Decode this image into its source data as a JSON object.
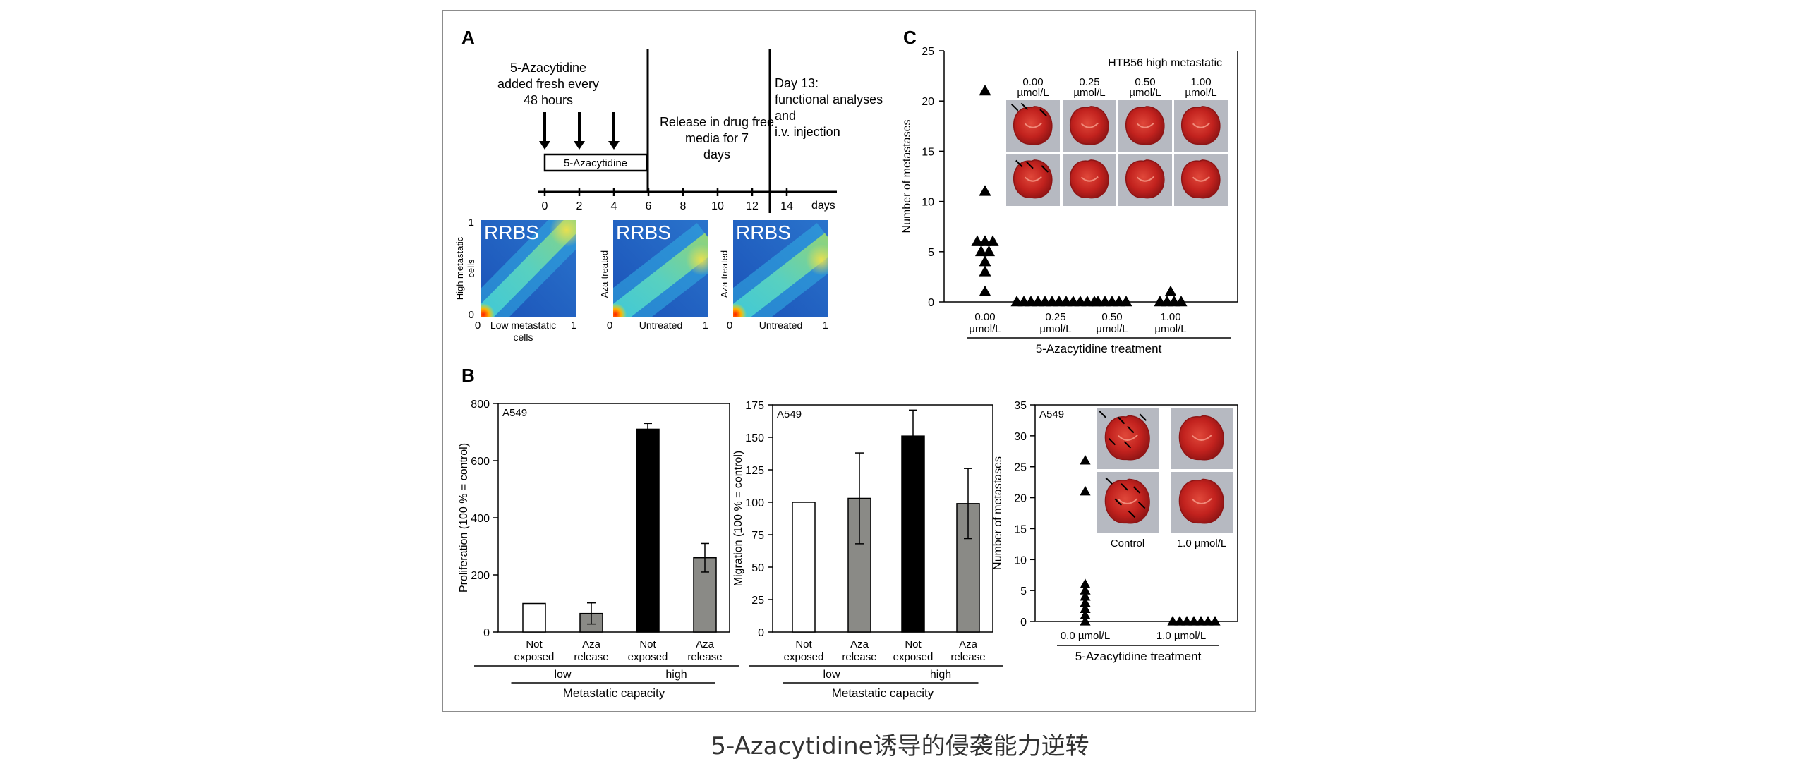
{
  "caption": "5-Azacytidine诱导的侵袭能力逆转",
  "panel_A": {
    "label": "A",
    "drug_note": "5-Azacytidine added fresh every 48 hours",
    "drug_box": "5-Azacytidine",
    "release_note": "Release in drug free media for 7 days",
    "day13_note": "Day 13: functional analyses and i.v. injection",
    "timeline_ticks": [
      "0",
      "2",
      "4",
      "6",
      "8",
      "10",
      "12",
      "14"
    ],
    "timeline_unit": "days",
    "heatmaps": [
      {
        "tag": "RRBS",
        "ylabel": "High metastatic cells",
        "xlabel": "Low metastatic cells",
        "ymax": "1",
        "ymin": "0",
        "xmin": "0",
        "xmax": "1"
      },
      {
        "tag": "RRBS",
        "ylabel": "Aza-treated",
        "xlabel": "Untreated",
        "xmin": "0",
        "xmax": "1"
      },
      {
        "tag": "RRBS",
        "ylabel": "Aza-treated",
        "xlabel": "Untreated",
        "xmin": "0",
        "xmax": "1"
      }
    ]
  },
  "panel_B_label": "B",
  "panel_C_label": "C",
  "photo_colors": {
    "lung": "#c2221e",
    "lung_dark": "#8e1414",
    "background": "#b6b9c1"
  },
  "chart_data": [
    {
      "id": "C-HTB56",
      "type": "scatter",
      "ylabel": "Number of metastases",
      "xlabel": "5-Azacytidine treatment",
      "inset_title": "HTB56 high metastatic",
      "inset_labels": [
        "0.00 µmol/L",
        "0.25 µmol/L",
        "0.50 µmol/L",
        "1.00 µmol/L"
      ],
      "ylim": [
        0,
        25
      ],
      "yticks": [
        0,
        5,
        10,
        15,
        20,
        25
      ],
      "categories": [
        "0.00 µmol/L",
        "0.25 µmol/L",
        "0.50 µmol/L",
        "1.00 µmol/L"
      ],
      "points": [
        [
          0,
          21
        ],
        [
          0,
          11
        ],
        [
          0,
          6
        ],
        [
          0,
          6
        ],
        [
          0,
          6
        ],
        [
          0,
          5
        ],
        [
          0,
          5
        ],
        [
          0,
          4
        ],
        [
          0,
          3
        ],
        [
          0,
          1
        ],
        [
          1,
          0
        ],
        [
          1,
          0
        ],
        [
          1,
          0
        ],
        [
          1,
          0
        ],
        [
          1,
          0
        ],
        [
          1,
          0
        ],
        [
          1,
          0
        ],
        [
          1,
          0
        ],
        [
          1,
          0
        ],
        [
          1,
          0
        ],
        [
          1,
          0
        ],
        [
          1,
          0
        ],
        [
          2,
          0
        ],
        [
          2,
          0
        ],
        [
          2,
          0
        ],
        [
          2,
          0
        ],
        [
          2,
          0
        ],
        [
          3,
          1
        ],
        [
          3,
          0
        ],
        [
          3,
          0
        ],
        [
          3,
          0
        ],
        [
          3,
          0
        ]
      ],
      "marker": "triangle"
    },
    {
      "id": "B-proliferation",
      "type": "bar",
      "cell_line": "A549",
      "ylabel": "Proliferation (100 % = control)",
      "ylim": [
        0,
        800
      ],
      "yticks": [
        0,
        200,
        400,
        600,
        800
      ],
      "categories": [
        "Not exposed",
        "Aza release",
        "Not exposed",
        "Aza release"
      ],
      "values": [
        100,
        65,
        710,
        260
      ],
      "errors": [
        0,
        37,
        20,
        50
      ],
      "colors": [
        "#ffffff",
        "#8a8a86",
        "#000000",
        "#8a8a86"
      ],
      "groups": [
        {
          "label": "low",
          "span": [
            0,
            1
          ]
        },
        {
          "label": "high",
          "span": [
            2,
            3
          ]
        }
      ],
      "xlabel": "Metastatic capacity"
    },
    {
      "id": "B-migration",
      "type": "bar",
      "cell_line": "A549",
      "ylabel": "Migration (100 % = control)",
      "ylim": [
        0,
        175
      ],
      "yticks": [
        0,
        25,
        50,
        75,
        100,
        125,
        150,
        175
      ],
      "categories": [
        "Not exposed",
        "Aza release",
        "Not exposed",
        "Aza release"
      ],
      "values": [
        100,
        103,
        151,
        99
      ],
      "errors": [
        0,
        35,
        20,
        27
      ],
      "colors": [
        "#ffffff",
        "#8a8a86",
        "#000000",
        "#8a8a86"
      ],
      "groups": [
        {
          "label": "low",
          "span": [
            0,
            1
          ]
        },
        {
          "label": "high",
          "span": [
            2,
            3
          ]
        }
      ],
      "xlabel": "Metastatic capacity"
    },
    {
      "id": "B-metastases",
      "type": "scatter",
      "cell_line": "A549",
      "ylabel": "Number of metastases",
      "xlabel": "5-Azacytidine treatment",
      "ylim": [
        0,
        35
      ],
      "yticks": [
        0,
        5,
        10,
        15,
        20,
        25,
        30,
        35
      ],
      "categories": [
        "0.0 µmol/L",
        "1.0 µmol/L"
      ],
      "inset_labels": [
        "Control",
        "1.0 µmol/L"
      ],
      "points": [
        [
          0,
          26
        ],
        [
          0,
          21
        ],
        [
          0,
          6
        ],
        [
          0,
          5
        ],
        [
          0,
          4
        ],
        [
          0,
          3
        ],
        [
          0,
          2
        ],
        [
          0,
          1
        ],
        [
          0,
          0
        ],
        [
          1,
          0
        ],
        [
          1,
          0
        ],
        [
          1,
          0
        ],
        [
          1,
          0
        ],
        [
          1,
          0
        ],
        [
          1,
          0
        ],
        [
          1,
          0
        ]
      ],
      "marker": "triangle"
    }
  ]
}
